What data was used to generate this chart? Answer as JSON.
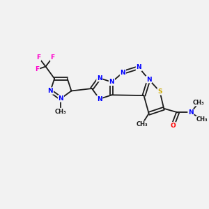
{
  "background_color": "#f2f2f2",
  "bond_color": "#1a1a1a",
  "n_color": "#0000ff",
  "s_color": "#ccaa00",
  "o_color": "#ff0000",
  "f_color": "#ff00cc",
  "lw": 1.3,
  "fs": 6.5,
  "xlim": [
    0,
    10
  ],
  "ylim": [
    0,
    10
  ]
}
